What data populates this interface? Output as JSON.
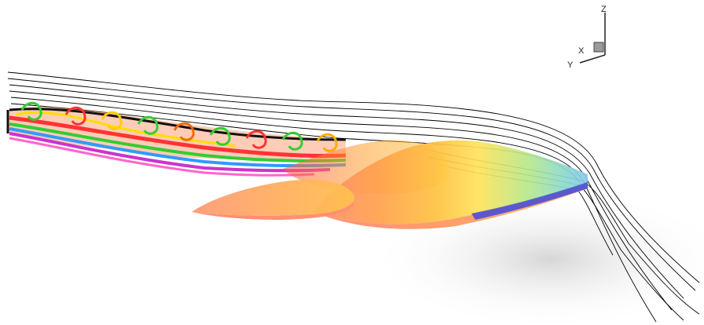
{
  "axes_triad": {
    "z_label": "Z",
    "x_label": "X",
    "y_label": "Y"
  },
  "colors": {
    "streamline": "#000000",
    "shadow": "#d6d6d6",
    "wing_leading": "#ff9a7a",
    "wing_mid": "#ffb347",
    "wing_yellow": "#ffe066",
    "wing_green": "#a8e08a",
    "wing_blue": "#7fd3e8",
    "wing_trailing_edge": "#4a4fd6"
  }
}
